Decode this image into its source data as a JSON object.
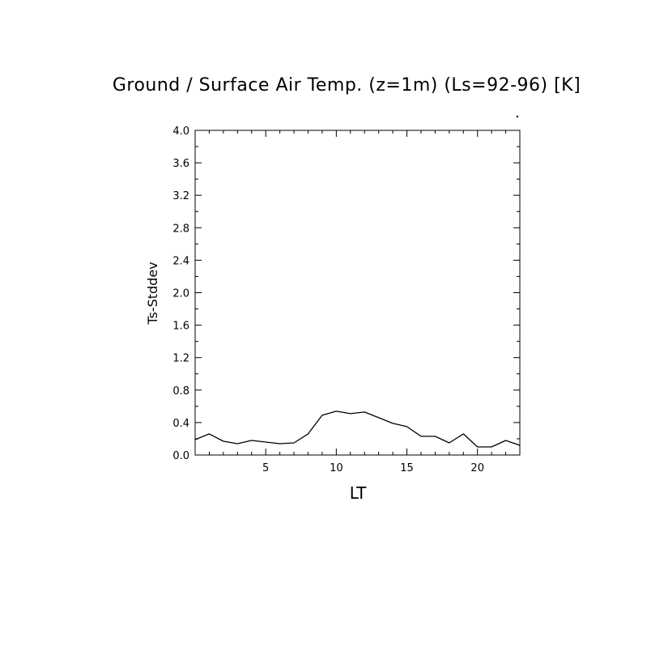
{
  "chart_data": {
    "type": "line",
    "title": "Ground / Surface Air Temp. (z=1m) (Ls=92-96) [K]",
    "xlabel": "LT",
    "ylabel": "Ts-Stddev",
    "xlim": [
      0,
      23
    ],
    "ylim": [
      0,
      4.0
    ],
    "x_ticks": [
      5,
      10,
      15,
      20
    ],
    "x_tick_labels": [
      "5",
      "10",
      "15",
      "20"
    ],
    "y_ticks": [
      0.0,
      0.4,
      0.8,
      1.2,
      1.6,
      2.0,
      2.4,
      2.8,
      3.2,
      3.6,
      4.0
    ],
    "y_tick_labels": [
      "0.0",
      "0.4",
      "0.8",
      "1.2",
      "1.6",
      "2.0",
      "2.4",
      "2.8",
      "3.2",
      "3.6",
      "4.0"
    ],
    "grid": false,
    "series": [
      {
        "color": "#000000",
        "x": [
          0,
          1,
          2,
          3,
          4,
          5,
          6,
          7,
          8,
          9,
          10,
          11,
          12,
          13,
          14,
          15,
          16,
          17,
          18,
          19,
          20,
          21,
          22,
          23
        ],
        "y": [
          0.19,
          0.26,
          0.17,
          0.14,
          0.18,
          0.16,
          0.14,
          0.15,
          0.26,
          0.49,
          0.54,
          0.51,
          0.53,
          0.46,
          0.39,
          0.35,
          0.23,
          0.23,
          0.15,
          0.26,
          0.1,
          0.1,
          0.18,
          0.12
        ]
      }
    ]
  }
}
